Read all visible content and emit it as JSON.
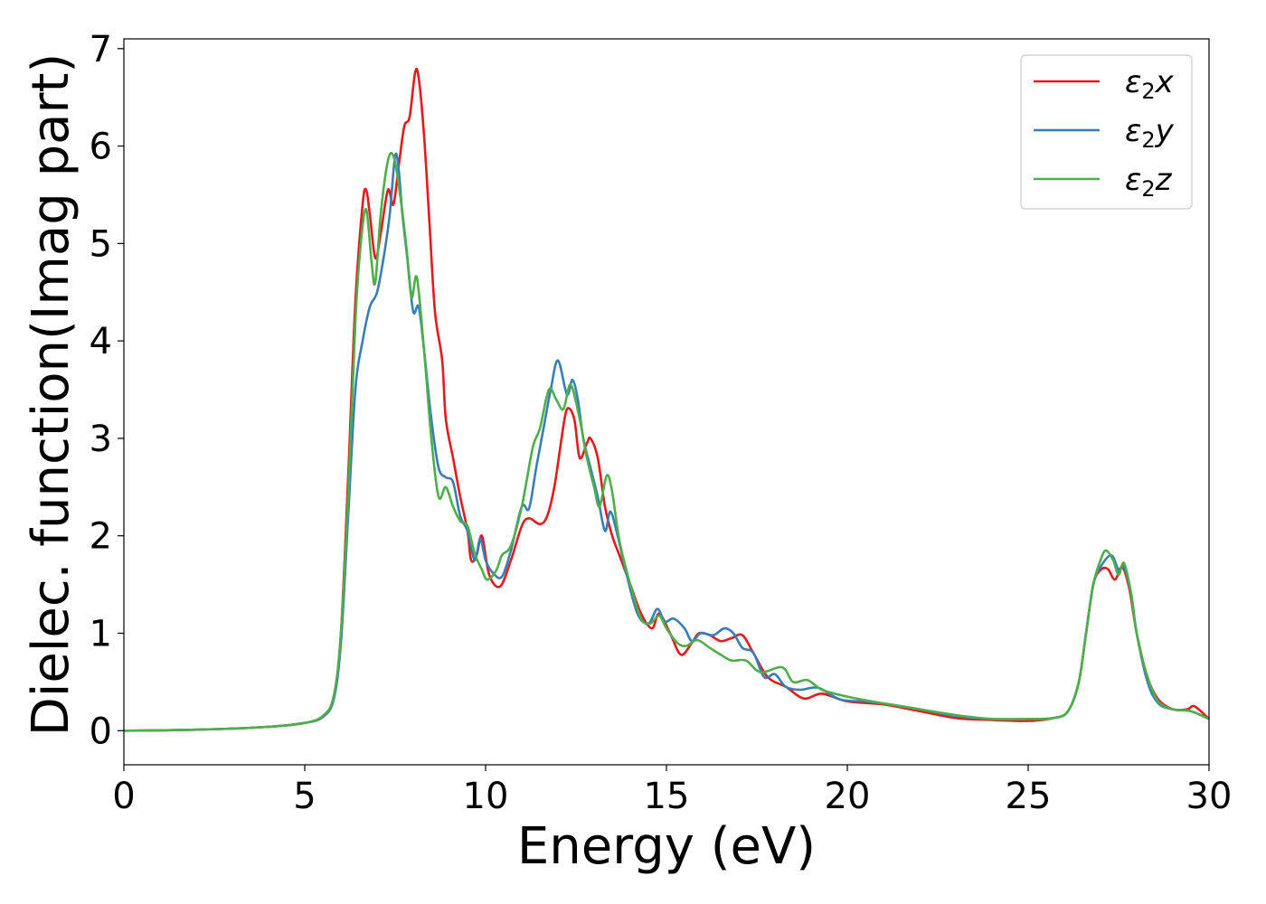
{
  "chart_data": {
    "type": "line",
    "title": "",
    "xlabel": "Energy (eV)",
    "ylabel": "Dielec. function(Imag part)",
    "xlim": [
      0,
      30
    ],
    "ylim": [
      -0.35,
      7.1
    ],
    "xticks": [
      0,
      5,
      10,
      15,
      20,
      25,
      30
    ],
    "yticks": [
      0,
      1,
      2,
      3,
      4,
      5,
      6,
      7
    ],
    "grid": false,
    "legend_position": "top-right",
    "series": [
      {
        "name": "ε₂x",
        "legend": {
          "base": "ε",
          "sub": "2",
          "var": "x"
        },
        "color": "#e41a1c",
        "points": [
          [
            0,
            0
          ],
          [
            2,
            0.01
          ],
          [
            4,
            0.04
          ],
          [
            5,
            0.08
          ],
          [
            5.5,
            0.15
          ],
          [
            5.8,
            0.35
          ],
          [
            6.0,
            1.0
          ],
          [
            6.2,
            2.6
          ],
          [
            6.4,
            4.4
          ],
          [
            6.6,
            5.4
          ],
          [
            6.7,
            5.55
          ],
          [
            6.8,
            5.3
          ],
          [
            6.95,
            4.85
          ],
          [
            7.1,
            5.1
          ],
          [
            7.3,
            5.55
          ],
          [
            7.45,
            5.4
          ],
          [
            7.6,
            5.8
          ],
          [
            7.75,
            6.2
          ],
          [
            7.9,
            6.3
          ],
          [
            8.05,
            6.75
          ],
          [
            8.15,
            6.7
          ],
          [
            8.3,
            6.1
          ],
          [
            8.45,
            5.2
          ],
          [
            8.6,
            4.3
          ],
          [
            8.8,
            3.8
          ],
          [
            8.9,
            3.2
          ],
          [
            9.1,
            2.8
          ],
          [
            9.3,
            2.4
          ],
          [
            9.5,
            2.05
          ],
          [
            9.6,
            1.75
          ],
          [
            9.75,
            1.8
          ],
          [
            9.9,
            2.0
          ],
          [
            10.1,
            1.6
          ],
          [
            10.4,
            1.48
          ],
          [
            10.7,
            1.75
          ],
          [
            11.0,
            2.1
          ],
          [
            11.2,
            2.18
          ],
          [
            11.5,
            2.12
          ],
          [
            11.7,
            2.2
          ],
          [
            11.9,
            2.5
          ],
          [
            12.1,
            3.0
          ],
          [
            12.25,
            3.3
          ],
          [
            12.45,
            3.2
          ],
          [
            12.6,
            2.8
          ],
          [
            12.8,
            2.95
          ],
          [
            12.9,
            3.0
          ],
          [
            13.1,
            2.8
          ],
          [
            13.3,
            2.3
          ],
          [
            13.5,
            2.0
          ],
          [
            13.7,
            1.8
          ],
          [
            14.0,
            1.5
          ],
          [
            14.3,
            1.2
          ],
          [
            14.6,
            1.05
          ],
          [
            14.8,
            1.2
          ],
          [
            15.1,
            1.0
          ],
          [
            15.4,
            0.78
          ],
          [
            15.7,
            0.9
          ],
          [
            15.9,
            1.0
          ],
          [
            16.2,
            0.98
          ],
          [
            16.5,
            0.92
          ],
          [
            16.8,
            0.95
          ],
          [
            17.1,
            0.98
          ],
          [
            17.4,
            0.8
          ],
          [
            17.8,
            0.55
          ],
          [
            18.3,
            0.45
          ],
          [
            18.8,
            0.33
          ],
          [
            19.3,
            0.38
          ],
          [
            20.0,
            0.3
          ],
          [
            21.0,
            0.27
          ],
          [
            22.0,
            0.2
          ],
          [
            23.0,
            0.13
          ],
          [
            24.0,
            0.11
          ],
          [
            25.0,
            0.1
          ],
          [
            25.7,
            0.13
          ],
          [
            26.1,
            0.2
          ],
          [
            26.4,
            0.5
          ],
          [
            26.6,
            1.0
          ],
          [
            26.8,
            1.5
          ],
          [
            27.0,
            1.65
          ],
          [
            27.2,
            1.66
          ],
          [
            27.4,
            1.55
          ],
          [
            27.6,
            1.68
          ],
          [
            27.8,
            1.45
          ],
          [
            28.0,
            1.0
          ],
          [
            28.3,
            0.55
          ],
          [
            28.6,
            0.32
          ],
          [
            29.0,
            0.22
          ],
          [
            29.4,
            0.22
          ],
          [
            29.6,
            0.25
          ],
          [
            30,
            0.12
          ]
        ]
      },
      {
        "name": "ε₂y",
        "legend": {
          "base": "ε",
          "sub": "2",
          "var": "y"
        },
        "color": "#377eb8",
        "points": [
          [
            0,
            0
          ],
          [
            2,
            0.01
          ],
          [
            4,
            0.04
          ],
          [
            5,
            0.08
          ],
          [
            5.5,
            0.14
          ],
          [
            5.8,
            0.32
          ],
          [
            6.0,
            0.9
          ],
          [
            6.2,
            2.2
          ],
          [
            6.4,
            3.5
          ],
          [
            6.6,
            4.0
          ],
          [
            6.8,
            4.35
          ],
          [
            7.0,
            4.5
          ],
          [
            7.2,
            4.9
          ],
          [
            7.35,
            5.3
          ],
          [
            7.5,
            5.9
          ],
          [
            7.6,
            5.75
          ],
          [
            7.7,
            5.3
          ],
          [
            7.85,
            4.8
          ],
          [
            8.0,
            4.3
          ],
          [
            8.15,
            4.35
          ],
          [
            8.3,
            3.9
          ],
          [
            8.5,
            3.2
          ],
          [
            8.7,
            2.7
          ],
          [
            8.9,
            2.6
          ],
          [
            9.1,
            2.55
          ],
          [
            9.3,
            2.2
          ],
          [
            9.5,
            2.05
          ],
          [
            9.7,
            1.75
          ],
          [
            9.85,
            1.97
          ],
          [
            10.0,
            1.75
          ],
          [
            10.2,
            1.62
          ],
          [
            10.45,
            1.58
          ],
          [
            10.7,
            1.85
          ],
          [
            11.0,
            2.3
          ],
          [
            11.2,
            2.28
          ],
          [
            11.4,
            2.7
          ],
          [
            11.6,
            3.1
          ],
          [
            11.8,
            3.5
          ],
          [
            12.0,
            3.8
          ],
          [
            12.25,
            3.45
          ],
          [
            12.4,
            3.6
          ],
          [
            12.55,
            3.4
          ],
          [
            12.7,
            3.0
          ],
          [
            12.9,
            2.7
          ],
          [
            13.1,
            2.4
          ],
          [
            13.3,
            2.05
          ],
          [
            13.45,
            2.25
          ],
          [
            13.65,
            2.0
          ],
          [
            13.9,
            1.6
          ],
          [
            14.2,
            1.2
          ],
          [
            14.5,
            1.1
          ],
          [
            14.75,
            1.25
          ],
          [
            14.95,
            1.12
          ],
          [
            15.2,
            1.15
          ],
          [
            15.5,
            1.05
          ],
          [
            15.7,
            0.92
          ],
          [
            15.95,
            1.0
          ],
          [
            16.3,
            0.98
          ],
          [
            16.6,
            1.05
          ],
          [
            16.85,
            1.0
          ],
          [
            17.1,
            0.85
          ],
          [
            17.4,
            0.8
          ],
          [
            17.7,
            0.55
          ],
          [
            18.0,
            0.58
          ],
          [
            18.3,
            0.45
          ],
          [
            18.7,
            0.42
          ],
          [
            19.2,
            0.44
          ],
          [
            19.8,
            0.32
          ],
          [
            20.5,
            0.3
          ],
          [
            21.0,
            0.28
          ],
          [
            22.0,
            0.22
          ],
          [
            23.0,
            0.15
          ],
          [
            24.0,
            0.12
          ],
          [
            25.0,
            0.12
          ],
          [
            25.7,
            0.13
          ],
          [
            26.1,
            0.2
          ],
          [
            26.4,
            0.5
          ],
          [
            26.6,
            1.0
          ],
          [
            26.8,
            1.5
          ],
          [
            27.0,
            1.68
          ],
          [
            27.3,
            1.8
          ],
          [
            27.5,
            1.65
          ],
          [
            27.65,
            1.68
          ],
          [
            27.85,
            1.4
          ],
          [
            28.0,
            1.0
          ],
          [
            28.3,
            0.5
          ],
          [
            28.6,
            0.28
          ],
          [
            29.0,
            0.22
          ],
          [
            29.5,
            0.2
          ],
          [
            30,
            0.12
          ]
        ]
      },
      {
        "name": "ε₂z",
        "legend": {
          "base": "ε",
          "sub": "2",
          "var": "z"
        },
        "color": "#4daf4a",
        "points": [
          [
            0,
            0
          ],
          [
            2,
            0.01
          ],
          [
            4,
            0.04
          ],
          [
            5,
            0.08
          ],
          [
            5.5,
            0.15
          ],
          [
            5.8,
            0.35
          ],
          [
            6.0,
            1.0
          ],
          [
            6.2,
            2.4
          ],
          [
            6.4,
            4.2
          ],
          [
            6.55,
            5.0
          ],
          [
            6.7,
            5.35
          ],
          [
            6.85,
            4.8
          ],
          [
            6.95,
            4.6
          ],
          [
            7.1,
            5.3
          ],
          [
            7.3,
            5.85
          ],
          [
            7.45,
            5.9
          ],
          [
            7.6,
            5.6
          ],
          [
            7.8,
            5.0
          ],
          [
            7.95,
            4.45
          ],
          [
            8.1,
            4.65
          ],
          [
            8.3,
            3.9
          ],
          [
            8.5,
            3.0
          ],
          [
            8.7,
            2.4
          ],
          [
            8.9,
            2.5
          ],
          [
            9.1,
            2.3
          ],
          [
            9.3,
            2.15
          ],
          [
            9.5,
            2.1
          ],
          [
            9.7,
            1.82
          ],
          [
            9.9,
            1.65
          ],
          [
            10.05,
            1.55
          ],
          [
            10.3,
            1.65
          ],
          [
            10.45,
            1.8
          ],
          [
            10.7,
            1.9
          ],
          [
            11.0,
            2.3
          ],
          [
            11.3,
            2.9
          ],
          [
            11.5,
            3.1
          ],
          [
            11.75,
            3.5
          ],
          [
            11.95,
            3.4
          ],
          [
            12.15,
            3.3
          ],
          [
            12.35,
            3.55
          ],
          [
            12.6,
            3.2
          ],
          [
            12.8,
            2.8
          ],
          [
            13.0,
            2.5
          ],
          [
            13.15,
            2.3
          ],
          [
            13.35,
            2.62
          ],
          [
            13.5,
            2.45
          ],
          [
            13.7,
            1.95
          ],
          [
            14.0,
            1.5
          ],
          [
            14.3,
            1.15
          ],
          [
            14.55,
            1.1
          ],
          [
            14.8,
            1.18
          ],
          [
            15.0,
            1.05
          ],
          [
            15.3,
            0.9
          ],
          [
            15.55,
            0.87
          ],
          [
            15.85,
            0.93
          ],
          [
            16.2,
            0.85
          ],
          [
            16.5,
            0.78
          ],
          [
            16.8,
            0.72
          ],
          [
            17.2,
            0.72
          ],
          [
            17.6,
            0.6
          ],
          [
            18.2,
            0.65
          ],
          [
            18.5,
            0.5
          ],
          [
            18.9,
            0.52
          ],
          [
            19.3,
            0.42
          ],
          [
            20.0,
            0.35
          ],
          [
            21.0,
            0.28
          ],
          [
            22.0,
            0.22
          ],
          [
            23.0,
            0.16
          ],
          [
            24.0,
            0.12
          ],
          [
            25.0,
            0.12
          ],
          [
            25.7,
            0.13
          ],
          [
            26.1,
            0.2
          ],
          [
            26.4,
            0.5
          ],
          [
            26.6,
            1.0
          ],
          [
            26.8,
            1.5
          ],
          [
            27.0,
            1.75
          ],
          [
            27.15,
            1.85
          ],
          [
            27.35,
            1.75
          ],
          [
            27.5,
            1.6
          ],
          [
            27.65,
            1.72
          ],
          [
            27.85,
            1.4
          ],
          [
            28.0,
            1.0
          ],
          [
            28.3,
            0.55
          ],
          [
            28.6,
            0.3
          ],
          [
            29.0,
            0.22
          ],
          [
            29.5,
            0.2
          ],
          [
            30,
            0.12
          ]
        ]
      }
    ]
  }
}
